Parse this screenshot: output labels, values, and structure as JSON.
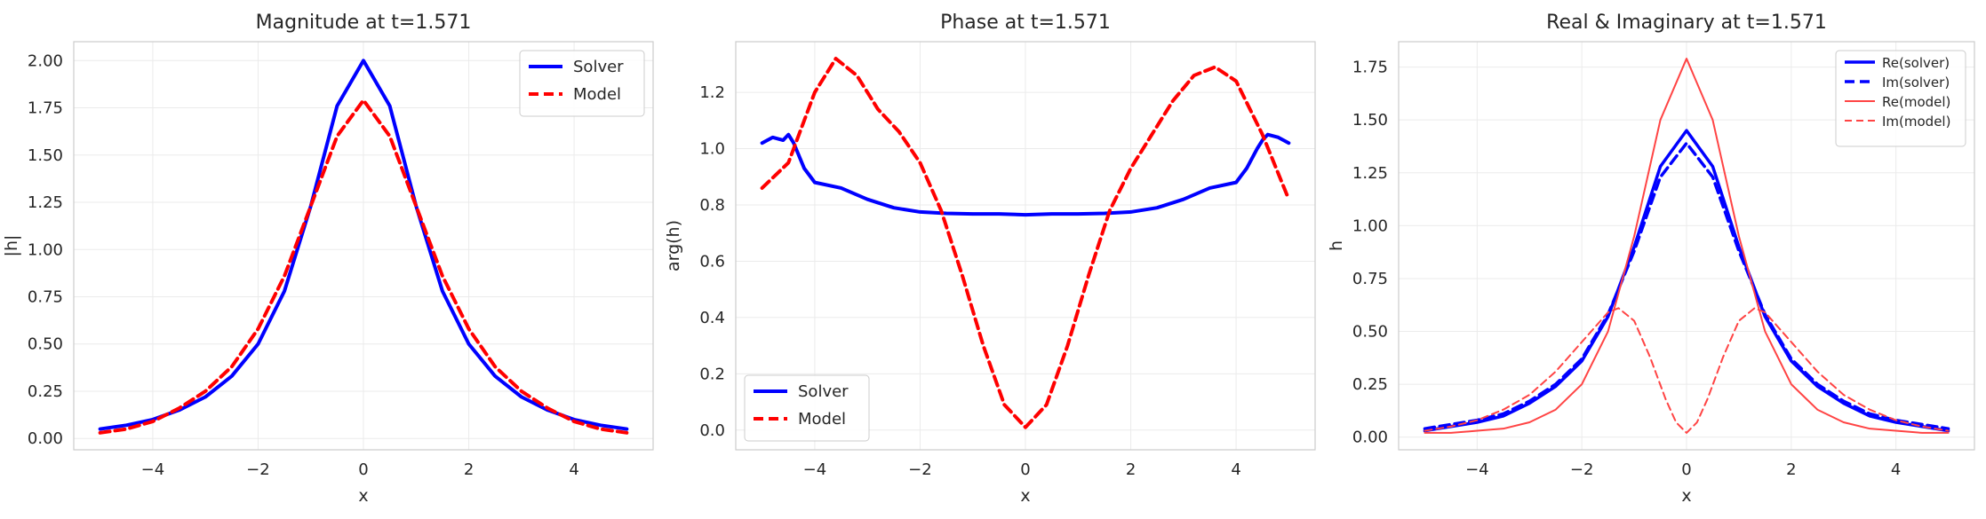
{
  "chart_data": [
    {
      "type": "line",
      "title": "Magnitude at t=1.571",
      "xlabel": "x",
      "ylabel": "|h|",
      "xlim": [
        -5.5,
        5.5
      ],
      "ylim": [
        -0.06,
        2.1
      ],
      "xticks": [
        -4,
        -2,
        0,
        2,
        4
      ],
      "xtick_labels": [
        "−4",
        "−2",
        "0",
        "2",
        "4"
      ],
      "yticks": [
        0,
        0.25,
        0.5,
        0.75,
        1.0,
        1.25,
        1.5,
        1.75,
        2.0
      ],
      "ytick_labels": [
        "0.00",
        "0.25",
        "0.50",
        "0.75",
        "1.00",
        "1.25",
        "1.50",
        "1.75",
        "2.00"
      ],
      "grid": true,
      "legend_position": "top-right",
      "series": [
        {
          "name": "Solver",
          "color": "#0000ff",
          "style": "solid",
          "x": [
            -5,
            -4.5,
            -4,
            -3.5,
            -3,
            -2.5,
            -2,
            -1.5,
            -1,
            -0.5,
            0,
            0.5,
            1,
            1.5,
            2,
            2.5,
            3,
            3.5,
            4,
            4.5,
            5
          ],
          "y": [
            0.05,
            0.07,
            0.1,
            0.15,
            0.22,
            0.33,
            0.5,
            0.78,
            1.23,
            1.76,
            2.0,
            1.76,
            1.23,
            0.78,
            0.5,
            0.33,
            0.22,
            0.15,
            0.1,
            0.07,
            0.05
          ]
        },
        {
          "name": "Model",
          "color": "#ff0000",
          "style": "dashed",
          "x": [
            -5,
            -4.5,
            -4,
            -3.5,
            -3,
            -2.5,
            -2,
            -1.5,
            -1,
            -0.5,
            0,
            0.5,
            1,
            1.5,
            2,
            2.5,
            3,
            3.5,
            4,
            4.5,
            5
          ],
          "y": [
            0.03,
            0.05,
            0.09,
            0.16,
            0.25,
            0.38,
            0.58,
            0.86,
            1.23,
            1.6,
            1.79,
            1.6,
            1.23,
            0.86,
            0.58,
            0.38,
            0.25,
            0.16,
            0.09,
            0.05,
            0.03
          ]
        }
      ]
    },
    {
      "type": "line",
      "title": "Phase at t=1.571",
      "xlabel": "x",
      "ylabel": "arg(h)",
      "xlim": [
        -5.5,
        5.5
      ],
      "ylim": [
        -0.07,
        1.38
      ],
      "xticks": [
        -4,
        -2,
        0,
        2,
        4
      ],
      "xtick_labels": [
        "−4",
        "−2",
        "0",
        "2",
        "4"
      ],
      "yticks": [
        0,
        0.2,
        0.4,
        0.6,
        0.8,
        1.0,
        1.2
      ],
      "ytick_labels": [
        "0.0",
        "0.2",
        "0.4",
        "0.6",
        "0.8",
        "1.0",
        "1.2"
      ],
      "grid": true,
      "legend_position": "bottom-left",
      "series": [
        {
          "name": "Solver",
          "color": "#0000ff",
          "style": "solid",
          "x": [
            -5,
            -4.8,
            -4.6,
            -4.5,
            -4.4,
            -4.2,
            -4.0,
            -3.5,
            -3,
            -2.5,
            -2,
            -1.5,
            -1,
            -0.5,
            0,
            0.5,
            1,
            1.5,
            2,
            2.5,
            3,
            3.5,
            4,
            4.2,
            4.4,
            4.5,
            4.6,
            4.8,
            5
          ],
          "y": [
            1.02,
            1.04,
            1.03,
            1.05,
            1.02,
            0.93,
            0.88,
            0.86,
            0.82,
            0.79,
            0.775,
            0.77,
            0.768,
            0.768,
            0.765,
            0.768,
            0.768,
            0.77,
            0.775,
            0.79,
            0.82,
            0.86,
            0.88,
            0.93,
            1.0,
            1.03,
            1.05,
            1.04,
            1.02
          ]
        },
        {
          "name": "Model",
          "color": "#ff0000",
          "style": "dashed",
          "x": [
            -5,
            -4.5,
            -4,
            -3.6,
            -3.2,
            -2.8,
            -2.4,
            -2,
            -1.6,
            -1.2,
            -0.8,
            -0.4,
            0,
            0.4,
            0.8,
            1.2,
            1.6,
            2,
            2.4,
            2.8,
            3.2,
            3.6,
            4,
            4.5,
            5
          ],
          "y": [
            0.86,
            0.95,
            1.2,
            1.32,
            1.26,
            1.14,
            1.06,
            0.95,
            0.78,
            0.55,
            0.3,
            0.09,
            0.01,
            0.09,
            0.3,
            0.55,
            0.78,
            0.93,
            1.05,
            1.17,
            1.26,
            1.29,
            1.24,
            1.05,
            0.82
          ]
        }
      ]
    },
    {
      "type": "line",
      "title": "Real & Imaginary at t=1.571",
      "xlabel": "x",
      "ylabel": "h",
      "xlim": [
        -5.5,
        5.5
      ],
      "ylim": [
        -0.06,
        1.87
      ],
      "xticks": [
        -4,
        -2,
        0,
        2,
        4
      ],
      "xtick_labels": [
        "−4",
        "−2",
        "0",
        "2",
        "4"
      ],
      "yticks": [
        0,
        0.25,
        0.5,
        0.75,
        1.0,
        1.25,
        1.5,
        1.75
      ],
      "ytick_labels": [
        "0.00",
        "0.25",
        "0.50",
        "0.75",
        "1.00",
        "1.25",
        "1.50",
        "1.75"
      ],
      "grid": true,
      "legend_position": "top-right",
      "series": [
        {
          "name": "Re(solver)",
          "color": "#0000ff",
          "style": "solid",
          "width": 3.5,
          "x": [
            -5,
            -4.5,
            -4,
            -3.5,
            -3,
            -2.5,
            -2,
            -1.5,
            -1,
            -0.5,
            0,
            0.5,
            1,
            1.5,
            2,
            2.5,
            3,
            3.5,
            4,
            4.5,
            5
          ],
          "y": [
            0.03,
            0.05,
            0.07,
            0.1,
            0.16,
            0.24,
            0.36,
            0.57,
            0.9,
            1.28,
            1.45,
            1.28,
            0.9,
            0.57,
            0.36,
            0.24,
            0.16,
            0.1,
            0.07,
            0.05,
            0.03
          ]
        },
        {
          "name": "Im(solver)",
          "color": "#0000ff",
          "style": "dashed",
          "width": 3.5,
          "x": [
            -5,
            -4.5,
            -4,
            -3.5,
            -3,
            -2.5,
            -2,
            -1.5,
            -1,
            -0.5,
            0,
            0.5,
            1,
            1.5,
            2,
            2.5,
            3,
            3.5,
            4,
            4.5,
            5
          ],
          "y": [
            0.04,
            0.06,
            0.08,
            0.11,
            0.17,
            0.25,
            0.37,
            0.58,
            0.88,
            1.23,
            1.39,
            1.23,
            0.88,
            0.58,
            0.37,
            0.25,
            0.17,
            0.11,
            0.08,
            0.06,
            0.04
          ]
        },
        {
          "name": "Re(model)",
          "color": "#ff4444",
          "style": "solid",
          "width": 2,
          "x": [
            -5,
            -4.5,
            -4,
            -3.5,
            -3,
            -2.5,
            -2,
            -1.5,
            -1,
            -0.5,
            0,
            0.5,
            1,
            1.5,
            2,
            2.5,
            3,
            3.5,
            4,
            4.5,
            5
          ],
          "y": [
            0.02,
            0.02,
            0.03,
            0.04,
            0.07,
            0.13,
            0.25,
            0.5,
            0.95,
            1.5,
            1.79,
            1.5,
            0.95,
            0.5,
            0.25,
            0.13,
            0.07,
            0.04,
            0.03,
            0.02,
            0.02
          ]
        },
        {
          "name": "Im(model)",
          "color": "#ff4444",
          "style": "dashed",
          "width": 2,
          "x": [
            -5,
            -4.5,
            -4,
            -3.5,
            -3,
            -2.5,
            -2,
            -1.5,
            -1.3,
            -1,
            -0.7,
            -0.4,
            -0.2,
            0,
            0.2,
            0.4,
            0.7,
            1,
            1.3,
            1.5,
            2,
            2.5,
            3,
            3.5,
            4,
            4.5,
            5
          ],
          "y": [
            0.03,
            0.05,
            0.08,
            0.13,
            0.2,
            0.31,
            0.45,
            0.59,
            0.61,
            0.55,
            0.38,
            0.18,
            0.07,
            0.02,
            0.07,
            0.18,
            0.38,
            0.55,
            0.61,
            0.59,
            0.45,
            0.31,
            0.2,
            0.13,
            0.08,
            0.05,
            0.03
          ]
        }
      ]
    }
  ]
}
